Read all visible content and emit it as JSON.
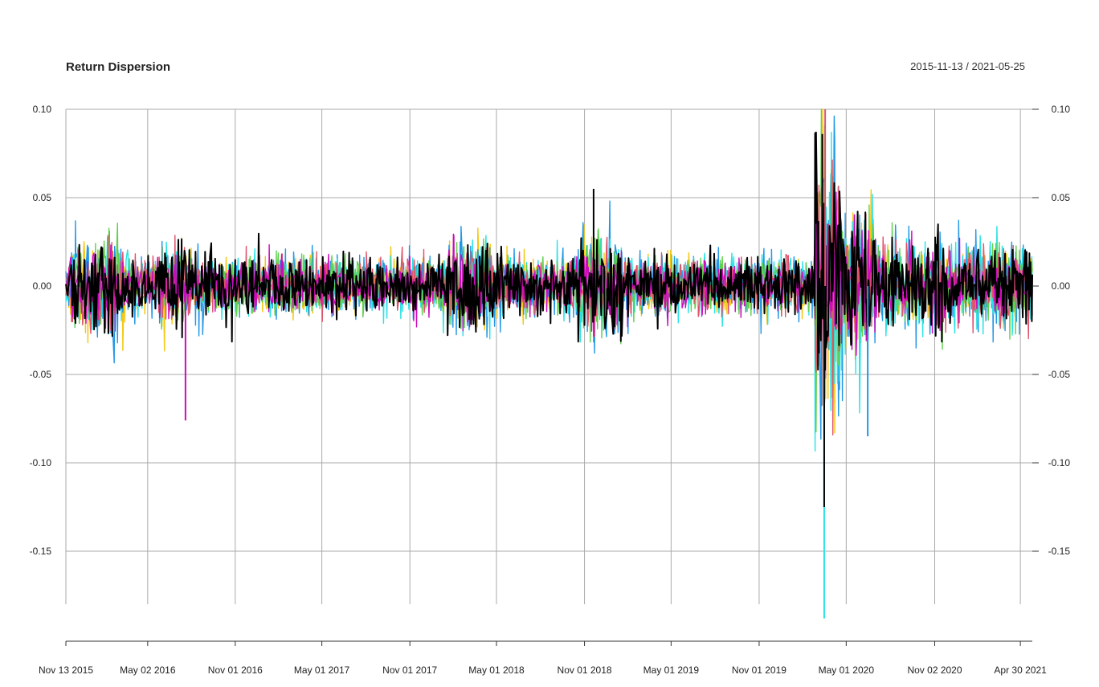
{
  "colors": {
    "grid": "#aaaaaa",
    "axis": "#333333",
    "series": [
      "#F5C710",
      "#2297E6",
      "#28E2E5",
      "#61D04F",
      "#DF536B",
      "#CD0BBC",
      "#000000"
    ]
  },
  "chart_data": {
    "type": "line",
    "title": "Return Dispersion",
    "date_range_label": "2015-11-13 / 2021-05-25",
    "x_start": "2015-11-13",
    "x_end": "2021-05-25",
    "ylim": [
      -0.18,
      0.1
    ],
    "y_ticks": [
      0.1,
      0.05,
      0.0,
      -0.05,
      -0.1,
      -0.15
    ],
    "y_tick_labels": [
      "0.10",
      "0.05",
      "0.00",
      "-0.05",
      "-0.10",
      "-0.15"
    ],
    "x_ticks": [
      {
        "date": "2015-11-13",
        "label": "Nov 13 2015"
      },
      {
        "date": "2016-05-02",
        "label": "May 02 2016"
      },
      {
        "date": "2016-11-01",
        "label": "Nov 01 2016"
      },
      {
        "date": "2017-05-01",
        "label": "May 01 2017"
      },
      {
        "date": "2017-11-01",
        "label": "Nov 01 2017"
      },
      {
        "date": "2018-05-01",
        "label": "May 01 2018"
      },
      {
        "date": "2018-11-01",
        "label": "Nov 01 2018"
      },
      {
        "date": "2019-05-01",
        "label": "May 01 2019"
      },
      {
        "date": "2019-11-01",
        "label": "Nov 01 2019"
      },
      {
        "date": "2020-05-01",
        "label": "May 01 2020"
      },
      {
        "date": "2020-11-02",
        "label": "Nov 02 2020"
      },
      {
        "date": "2021-04-30",
        "label": "Apr 30 2021"
      }
    ],
    "grid": true,
    "series_count": 7,
    "notable_points": [
      {
        "date": "2016-07-20",
        "value": -0.076,
        "series_index": 5
      },
      {
        "date": "2018-11-20",
        "value": 0.055,
        "series_index": 6
      },
      {
        "date": "2020-03-16",
        "value": -0.188,
        "series_index": 2
      },
      {
        "date": "2020-03-18",
        "value": 0.1,
        "series_index": 4
      },
      {
        "date": "2020-03-12",
        "value": 0.086,
        "series_index": 6
      },
      {
        "date": "2020-03-16",
        "value": -0.125,
        "series_index": 6
      },
      {
        "date": "2020-06-15",
        "value": -0.085,
        "series_index": 1
      }
    ]
  }
}
